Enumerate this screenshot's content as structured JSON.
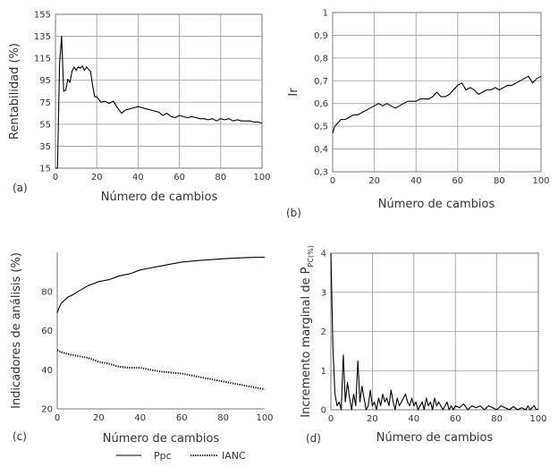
{
  "colors": {
    "line": "#000000",
    "grid": "#9a9a9a",
    "text": "#333333"
  },
  "chart_data": [
    {
      "id": "a",
      "panel_label": "(a)",
      "type": "line",
      "xlabel": "Número de cambios",
      "ylabel": "Rentabilidad (%)",
      "xlim": [
        0,
        100
      ],
      "ylim": [
        15,
        155
      ],
      "xticks": [
        0,
        20,
        40,
        60,
        80,
        100
      ],
      "yticks": [
        15,
        35,
        55,
        75,
        95,
        115,
        135,
        155
      ],
      "grid": true,
      "series": [
        {
          "style": "solid",
          "x": [
            0,
            1,
            2,
            3,
            4,
            5,
            6,
            7,
            8,
            9,
            10,
            11,
            12,
            13,
            14,
            15,
            16,
            17,
            18,
            19,
            20,
            22,
            24,
            26,
            28,
            30,
            32,
            34,
            36,
            38,
            40,
            42,
            44,
            46,
            48,
            50,
            52,
            54,
            56,
            58,
            60,
            62,
            64,
            66,
            68,
            70,
            72,
            74,
            76,
            78,
            80,
            82,
            84,
            86,
            88,
            90,
            92,
            94,
            96,
            98,
            100
          ],
          "y": [
            15,
            15,
            110,
            135,
            85,
            86,
            96,
            93,
            103,
            107,
            104,
            107,
            106,
            108,
            104,
            107,
            105,
            103,
            90,
            80,
            80,
            75,
            76,
            74,
            76,
            70,
            65,
            68,
            69,
            70,
            71,
            70,
            69,
            68,
            67,
            66,
            63,
            65,
            62,
            61,
            63,
            62,
            61,
            62,
            61,
            60,
            60,
            59,
            60,
            58,
            60,
            59,
            60,
            58,
            59,
            58,
            58,
            58,
            57,
            57,
            56
          ]
        }
      ]
    },
    {
      "id": "b",
      "panel_label": "(b)",
      "type": "line",
      "xlabel": "Número de cambios",
      "ylabel": "Ir",
      "xlim": [
        0,
        100
      ],
      "ylim": [
        0.3,
        1.0
      ],
      "xticks": [
        0,
        20,
        40,
        60,
        80,
        100
      ],
      "yticks": [
        0.3,
        0.4,
        0.5,
        0.6,
        0.7,
        0.8,
        0.9,
        1.0
      ],
      "ytick_labels": [
        "0,3",
        "0,4",
        "0,5",
        "0,6",
        "0,7",
        "0,8",
        "0,9",
        "1"
      ],
      "grid": true,
      "series": [
        {
          "style": "solid",
          "x": [
            0,
            1,
            2,
            3,
            4,
            6,
            8,
            10,
            12,
            14,
            16,
            18,
            20,
            22,
            24,
            26,
            28,
            30,
            32,
            34,
            36,
            38,
            40,
            42,
            44,
            46,
            48,
            50,
            52,
            54,
            56,
            58,
            60,
            62,
            64,
            66,
            68,
            70,
            72,
            74,
            76,
            78,
            80,
            82,
            84,
            86,
            88,
            90,
            92,
            94,
            96,
            98,
            100
          ],
          "y": [
            0.47,
            0.5,
            0.51,
            0.52,
            0.53,
            0.53,
            0.54,
            0.55,
            0.55,
            0.56,
            0.57,
            0.58,
            0.59,
            0.6,
            0.59,
            0.6,
            0.59,
            0.58,
            0.59,
            0.6,
            0.61,
            0.61,
            0.61,
            0.62,
            0.62,
            0.62,
            0.63,
            0.65,
            0.63,
            0.63,
            0.64,
            0.66,
            0.68,
            0.69,
            0.66,
            0.67,
            0.66,
            0.64,
            0.65,
            0.66,
            0.66,
            0.67,
            0.66,
            0.67,
            0.68,
            0.68,
            0.69,
            0.7,
            0.71,
            0.72,
            0.69,
            0.71,
            0.72
          ]
        }
      ]
    },
    {
      "id": "c",
      "panel_label": "(c)",
      "type": "line",
      "xlabel": "Número de cambios",
      "ylabel": "Indicadores de análisis (%)",
      "xlim": [
        0,
        100
      ],
      "ylim": [
        20,
        100
      ],
      "xticks": [
        0,
        20,
        40,
        60,
        80,
        100
      ],
      "yticks": [
        20,
        40,
        60,
        80
      ],
      "grid": false,
      "legend_position": "bottom",
      "series": [
        {
          "name": "Ppc",
          "style": "solid",
          "x": [
            0,
            1,
            2,
            3,
            5,
            7,
            10,
            15,
            20,
            25,
            30,
            35,
            40,
            45,
            50,
            55,
            60,
            65,
            70,
            75,
            80,
            85,
            90,
            95,
            100
          ],
          "y": [
            69,
            72,
            74,
            75,
            77,
            78,
            80,
            83,
            85,
            86,
            88,
            89,
            91,
            92,
            93,
            94,
            95,
            95.5,
            96,
            96.3,
            96.7,
            97,
            97.2,
            97.4,
            97.5
          ]
        },
        {
          "name": "IANC",
          "style": "dotted",
          "x": [
            0,
            2,
            5,
            10,
            15,
            20,
            25,
            30,
            35,
            40,
            45,
            50,
            55,
            60,
            65,
            70,
            75,
            80,
            85,
            90,
            95,
            100
          ],
          "y": [
            50,
            49,
            48,
            47,
            46,
            44,
            43,
            41.5,
            41,
            41,
            40,
            39,
            38.5,
            38,
            37,
            36,
            35,
            34,
            33,
            32,
            31,
            30
          ]
        }
      ]
    },
    {
      "id": "d",
      "panel_label": "(d)",
      "type": "line",
      "xlabel": "Número de cambios",
      "ylabel": "Incremento marginal de P",
      "ylabel_sub": "PC(%)",
      "xlim": [
        0,
        100
      ],
      "ylim": [
        0,
        4
      ],
      "xticks": [
        0,
        20,
        40,
        60,
        80,
        100
      ],
      "yticks": [
        0,
        1,
        2,
        3,
        4
      ],
      "grid": true,
      "series": [
        {
          "style": "solid",
          "x": [
            0,
            1,
            2,
            3,
            4,
            5,
            6,
            7,
            8,
            9,
            10,
            11,
            12,
            13,
            14,
            15,
            16,
            17,
            18,
            19,
            20,
            21,
            22,
            23,
            24,
            25,
            26,
            27,
            28,
            29,
            30,
            31,
            32,
            33,
            34,
            35,
            36,
            37,
            38,
            39,
            40,
            41,
            42,
            43,
            44,
            45,
            46,
            47,
            48,
            49,
            50,
            51,
            52,
            53,
            54,
            55,
            56,
            57,
            58,
            59,
            60,
            62,
            64,
            66,
            68,
            70,
            72,
            74,
            76,
            78,
            80,
            82,
            84,
            86,
            88,
            90,
            92,
            94,
            95,
            96,
            97,
            98,
            99,
            100
          ],
          "y": [
            4.0,
            1.6,
            0.4,
            0.1,
            0.2,
            0.0,
            1.4,
            0.2,
            0.7,
            0.3,
            0.0,
            0.4,
            0.1,
            1.25,
            0.2,
            0.6,
            0.3,
            0.0,
            0.1,
            0.5,
            0.1,
            0.2,
            0.0,
            0.3,
            0.1,
            0.4,
            0.2,
            0.3,
            0.1,
            0.5,
            0.2,
            0.0,
            0.3,
            0.1,
            0.2,
            0.3,
            0.4,
            0.2,
            0.1,
            0.3,
            0.1,
            0.2,
            0.0,
            0.1,
            0.2,
            0.0,
            0.3,
            0.1,
            0.2,
            0.0,
            0.3,
            0.1,
            0.2,
            0.1,
            0.0,
            0.1,
            0.2,
            0.0,
            0.1,
            0.0,
            0.1,
            0.05,
            0.15,
            0.0,
            0.1,
            0.05,
            0.1,
            0.0,
            0.1,
            0.05,
            0.0,
            0.1,
            0.05,
            0.0,
            0.08,
            0.0,
            0.05,
            0.0,
            0.1,
            0.0,
            0.05,
            0.1,
            0.0,
            0.02
          ]
        }
      ]
    }
  ]
}
